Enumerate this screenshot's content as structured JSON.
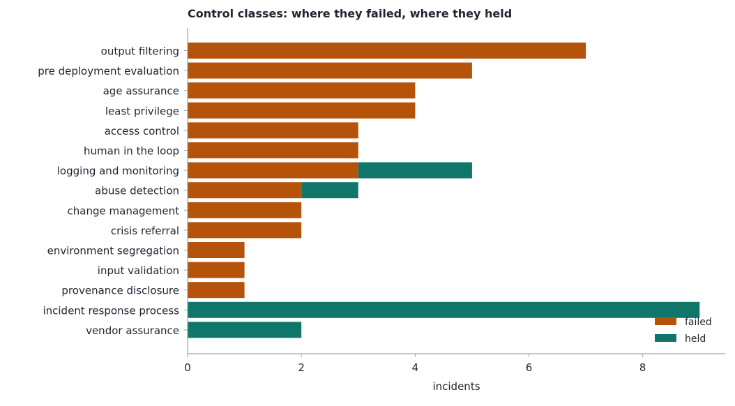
{
  "chart_data": {
    "type": "bar",
    "orientation": "horizontal",
    "stacked": true,
    "title": "Control classes: where they failed, where they held",
    "xlabel": "incidents",
    "ylabel": "",
    "xlim": [
      0,
      9.45
    ],
    "xticks": [
      0,
      2,
      4,
      6,
      8
    ],
    "grid": false,
    "legend_position": "bottom-right",
    "categories": [
      "output filtering",
      "pre deployment evaluation",
      "age assurance",
      "least privilege",
      "access control",
      "human in the loop",
      "logging and monitoring",
      "abuse detection",
      "change management",
      "crisis referral",
      "environment segregation",
      "input validation",
      "provenance disclosure",
      "incident response process",
      "vendor assurance"
    ],
    "series": [
      {
        "name": "failed",
        "color": "#b5530b",
        "values": [
          7,
          5,
          4,
          4,
          3,
          3,
          3,
          2,
          2,
          2,
          1,
          1,
          1,
          0,
          0
        ]
      },
      {
        "name": "held",
        "color": "#10766a",
        "values": [
          0,
          0,
          0,
          0,
          0,
          0,
          2,
          1,
          0,
          0,
          0,
          0,
          0,
          9,
          2
        ]
      }
    ]
  }
}
